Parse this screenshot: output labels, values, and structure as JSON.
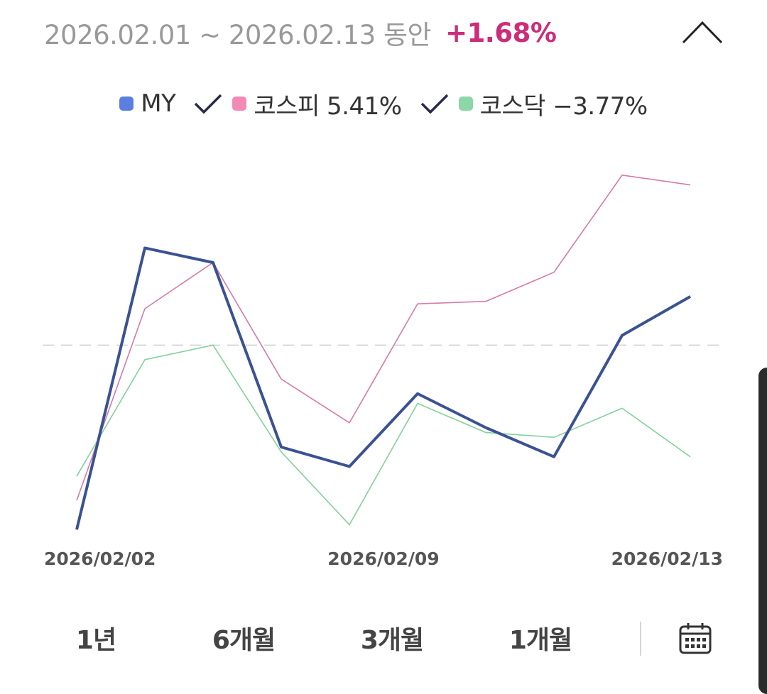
{
  "header": {
    "period": "2026.02.01 ~ 2026.02.13 동안",
    "change": "+1.68%"
  },
  "legend": {
    "items": [
      {
        "label": "MY",
        "color": "#5b7fe0",
        "check": false
      },
      {
        "label": "코스피 5.41%",
        "color": "#f28ab5",
        "check": true
      },
      {
        "label": "코스닥 −3.77%",
        "color": "#8dd6a8",
        "check": true
      }
    ],
    "check_color": "#2a2a4a"
  },
  "chart_data": {
    "type": "line",
    "x": [
      "2026/02/02",
      "2026/02/03",
      "2026/02/04",
      "2026/02/05",
      "2026/02/06",
      "2026/02/09",
      "2026/02/10",
      "2026/02/11",
      "2026/02/12",
      "2026/02/13"
    ],
    "x_tick_labels": [
      "2026/02/02",
      "2026/02/09",
      "2026/02/13"
    ],
    "baseline": 0,
    "ylim": [
      -4.0,
      3.6
    ],
    "series": [
      {
        "name": "MY",
        "color": "#3b5292",
        "stroke": 4,
        "values": [
          -3.8,
          2.0,
          1.7,
          -2.1,
          -2.5,
          -1.0,
          -1.7,
          -2.3,
          0.2,
          1.0
        ]
      },
      {
        "name": "코스피",
        "color": "#d47ba8",
        "stroke": 1.6,
        "values": [
          -3.2,
          0.75,
          1.7,
          -0.7,
          -1.6,
          0.85,
          0.9,
          1.5,
          3.5,
          3.3
        ]
      },
      {
        "name": "코스닥",
        "color": "#84d19c",
        "stroke": 1.6,
        "values": [
          -2.7,
          -0.3,
          0.0,
          -2.2,
          -3.7,
          -1.2,
          -1.8,
          -1.9,
          -1.3,
          -2.3
        ]
      }
    ],
    "grid": false
  },
  "periods": [
    "1년",
    "6개월",
    "3개월",
    "1개월"
  ],
  "icons": {
    "collapse": "chevron-up-icon",
    "calendar": "calendar-icon"
  }
}
